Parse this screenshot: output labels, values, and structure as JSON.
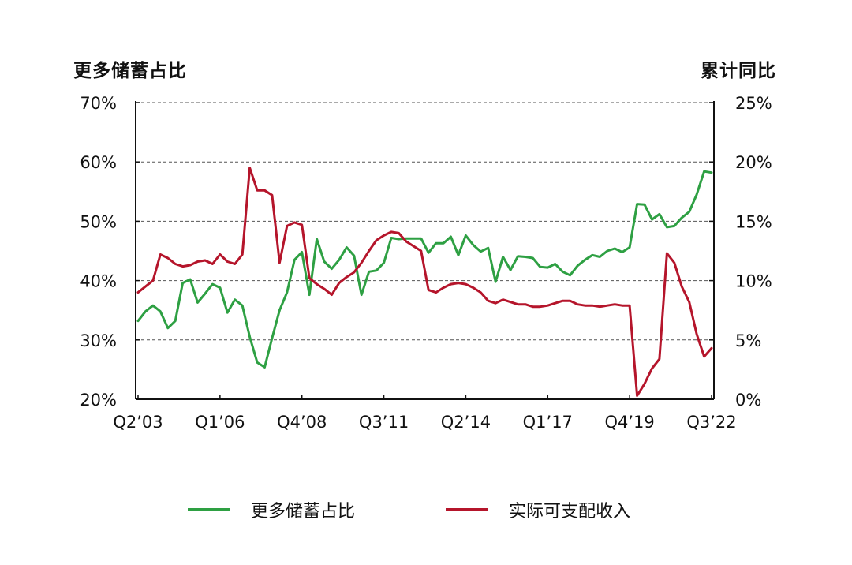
{
  "chart_data": {
    "type": "line",
    "left_axis_title": "更多储蓄占比",
    "right_axis_title": "累计同比",
    "left_ticks": [
      "20%",
      "30%",
      "40%",
      "50%",
      "60%",
      "70%"
    ],
    "right_ticks": [
      "0%",
      "5%",
      "10%",
      "15%",
      "20%",
      "25%"
    ],
    "ylim_left": [
      20,
      70
    ],
    "ylim_right": [
      0,
      25
    ],
    "x_tick_labels": [
      "Q2’03",
      "Q1’06",
      "Q4’08",
      "Q3’11",
      "Q2’14",
      "Q1’17",
      "Q4’19",
      "Q3’22"
    ],
    "x_tick_indices": [
      0,
      11,
      22,
      33,
      44,
      55,
      66,
      77
    ],
    "grid": "horizontal-dashed",
    "legend_position": "bottom",
    "colors": {
      "green": "#2ea043",
      "red": "#b5152b"
    },
    "series": [
      {
        "name": "更多储蓄占比",
        "axis": "left",
        "color": "#2ea043",
        "values": [
          33.2,
          34.8,
          35.8,
          34.8,
          32.0,
          33.2,
          39.6,
          40.2,
          36.3,
          37.8,
          39.4,
          38.8,
          34.6,
          36.8,
          35.8,
          30.5,
          26.2,
          25.4,
          30.3,
          35.0,
          38.0,
          43.5,
          44.8,
          37.6,
          47.0,
          43.2,
          42.0,
          43.5,
          45.6,
          44.2,
          37.6,
          41.5,
          41.7,
          43.0,
          47.2,
          47.0,
          47.1,
          47.1,
          47.1,
          44.7,
          46.3,
          46.3,
          47.4,
          44.3,
          47.6,
          46.0,
          44.9,
          45.5,
          39.8,
          44.0,
          41.8,
          44.1,
          44.0,
          43.8,
          42.3,
          42.2,
          42.8,
          41.5,
          40.9,
          42.5,
          43.5,
          44.3,
          44.0,
          45.0,
          45.4,
          44.8,
          45.6,
          52.9,
          52.8,
          50.3,
          51.2,
          49.0,
          49.2,
          50.6,
          51.6,
          54.5,
          58.4,
          58.2
        ]
      },
      {
        "name": "实际可支配收入",
        "axis": "right",
        "color": "#b5152b",
        "values": [
          9.0,
          9.5,
          10.0,
          12.2,
          11.9,
          11.4,
          11.2,
          11.3,
          11.6,
          11.7,
          11.4,
          12.2,
          11.6,
          11.4,
          12.2,
          19.5,
          17.6,
          17.6,
          17.2,
          11.5,
          14.6,
          14.9,
          14.7,
          10.2,
          9.7,
          9.3,
          8.8,
          9.8,
          10.3,
          10.7,
          11.5,
          12.5,
          13.4,
          13.8,
          14.1,
          14.0,
          13.3,
          12.9,
          12.5,
          9.2,
          9.0,
          9.4,
          9.7,
          9.8,
          9.7,
          9.4,
          9.0,
          8.3,
          8.1,
          8.4,
          8.2,
          8.0,
          8.0,
          7.8,
          7.8,
          7.9,
          8.1,
          8.3,
          8.3,
          8.0,
          7.9,
          7.9,
          7.8,
          7.9,
          8.0,
          7.9,
          7.9,
          0.3,
          1.3,
          2.6,
          3.4,
          12.3,
          11.5,
          9.5,
          8.2,
          5.5,
          3.6,
          4.3
        ]
      }
    ]
  },
  "legend": {
    "green_label": "更多储蓄占比",
    "red_label": "实际可支配收入"
  }
}
